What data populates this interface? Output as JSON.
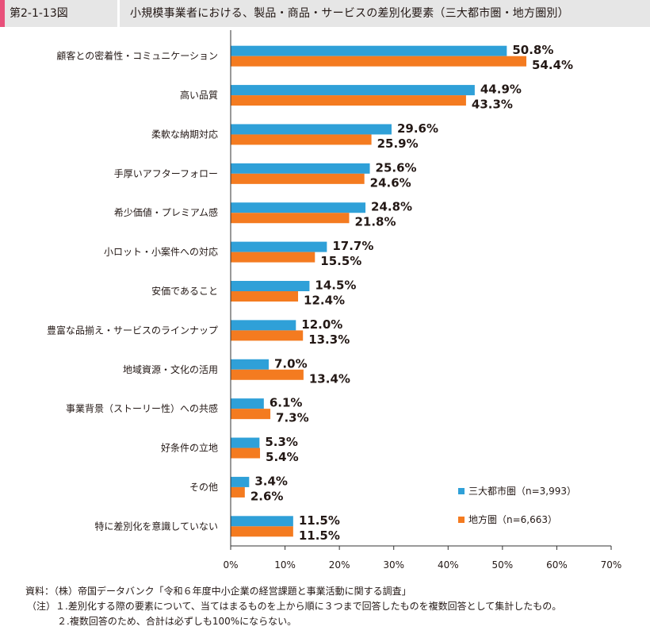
{
  "header": {
    "figure_label": "第2-1-13図",
    "title": "小規模事業者における、製品・商品・サービスの差別化要素（三大都市圏・地方圏別）"
  },
  "colors": {
    "series_1": "#2fa0d8",
    "series_2": "#f47b20",
    "axis": "#333333",
    "header_bg": "#e6e6e6",
    "header_accent": "#e8507a"
  },
  "chart_data": {
    "type": "bar",
    "orientation": "horizontal",
    "categories": [
      "顧客との密着性・コミュニケーション",
      "高い品質",
      "柔軟な納期対応",
      "手厚いアフターフォロー",
      "希少価値・プレミアム感",
      "小ロット・小案件への対応",
      "安価であること",
      "豊富な品揃え・サービスのラインナップ",
      "地域資源・文化の活用",
      "事業背景（ストーリー性）への共感",
      "好条件の立地",
      "その他",
      "特に差別化を意識していない"
    ],
    "series": [
      {
        "name": "三大都市圏（n=3,993）",
        "values": [
          50.8,
          44.9,
          29.6,
          25.6,
          24.8,
          17.7,
          14.5,
          12.0,
          7.0,
          6.1,
          5.3,
          3.4,
          11.5
        ],
        "labels": [
          "50.8%",
          "44.9%",
          "29.6%",
          "25.6%",
          "24.8%",
          "17.7%",
          "14.5%",
          "12.0%",
          "7.0%",
          "6.1%",
          "5.3%",
          "3.4%",
          "11.5%"
        ]
      },
      {
        "name": "地方圏（n=6,663）",
        "values": [
          54.4,
          43.3,
          25.9,
          24.6,
          21.8,
          15.5,
          12.4,
          13.3,
          13.4,
          7.3,
          5.4,
          2.6,
          11.5
        ],
        "labels": [
          "54.4%",
          "43.3%",
          "25.9%",
          "24.6%",
          "21.8%",
          "15.5%",
          "12.4%",
          "13.3%",
          "13.4%",
          "7.3%",
          "5.4%",
          "2.6%",
          "11.5%"
        ]
      }
    ],
    "xlim": [
      0,
      70
    ],
    "x_ticks": [
      0,
      10,
      20,
      30,
      40,
      50,
      60,
      70
    ],
    "x_tick_labels": [
      "0%",
      "10%",
      "20%",
      "30%",
      "40%",
      "50%",
      "60%",
      "70%"
    ],
    "grid": false,
    "legend_position": "bottom-right"
  },
  "notes": [
    "資料：（株）帝国データバンク「令和６年度中小企業の経営課題と事業活動に関する調査」",
    "（注）１.差別化する際の要素について、当てはまるものを上から順に３つまで回答したものを複数回答として集計したもの。",
    "２.複数回答のため、合計は必ずしも100%にならない。"
  ]
}
